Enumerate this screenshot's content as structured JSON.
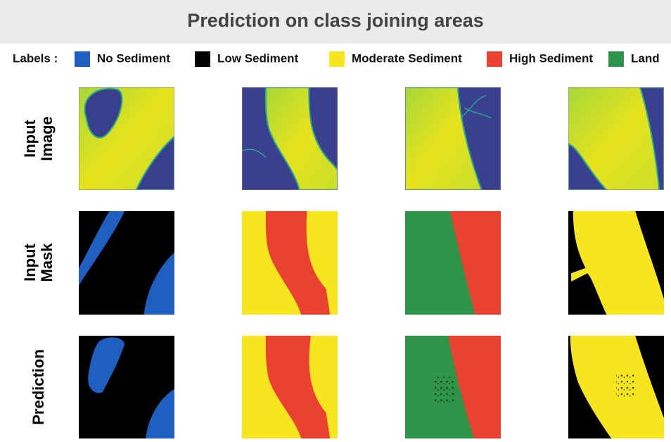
{
  "header": {
    "title": "Prediction on class joining areas"
  },
  "legend": {
    "label": "Labels :",
    "items": [
      {
        "name": "No Sediment",
        "color": "#1f5fbf"
      },
      {
        "name": "Low Sediment",
        "color": "#000000"
      },
      {
        "name": "Moderate Sediment",
        "color": "#f7e51d"
      },
      {
        "name": "High Sediment",
        "color": "#ea4130"
      },
      {
        "name": "Land",
        "color": "#2e9447"
      }
    ]
  },
  "rows": [
    {
      "lines": [
        "Input",
        "Image"
      ]
    },
    {
      "lines": [
        "Input",
        "Mask"
      ]
    },
    {
      "lines": [
        "Prediction"
      ]
    }
  ]
}
